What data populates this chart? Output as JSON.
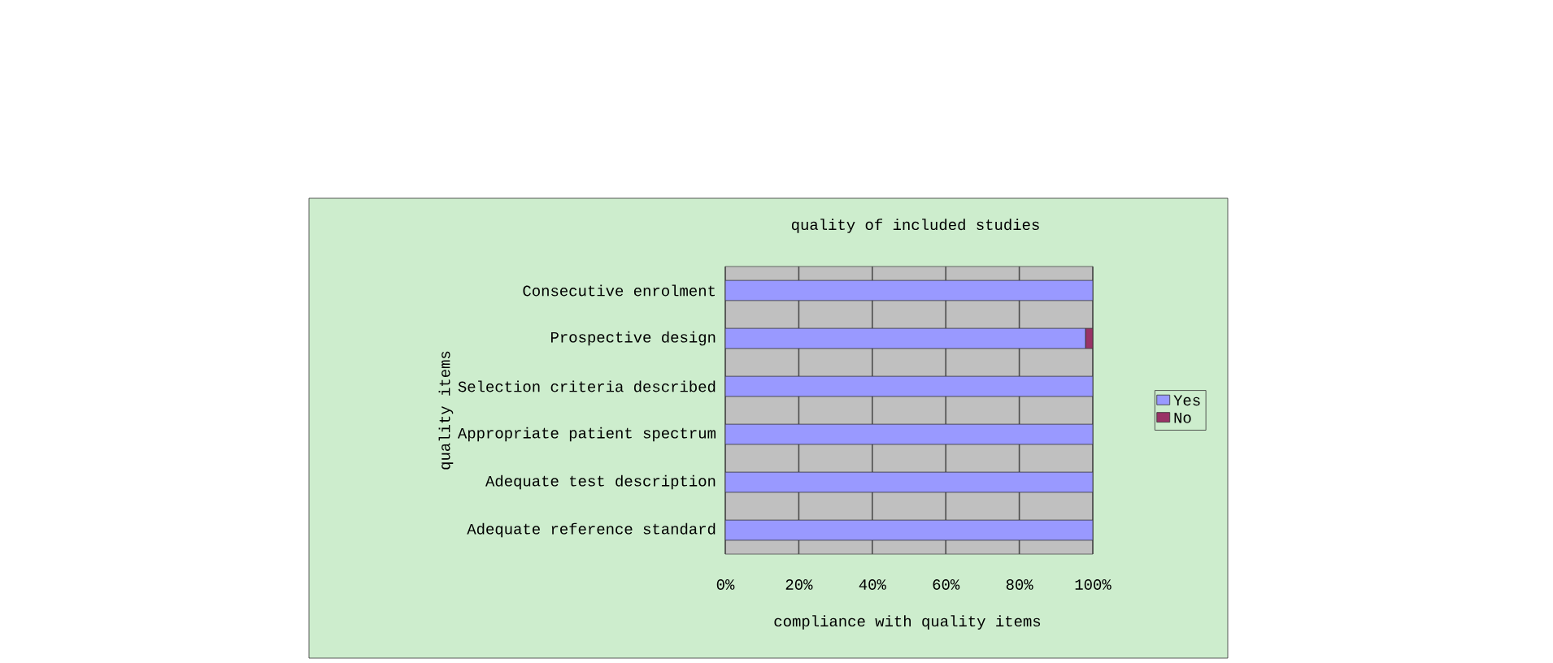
{
  "chart_data": {
    "type": "bar",
    "orientation": "horizontal",
    "stacked": true,
    "title": "quality of included studies",
    "xlabel": "compliance with quality items",
    "ylabel": "quality items",
    "categories": [
      "Consecutive enrolment",
      "Prospective design",
      "Selection criteria described",
      "Appropriate patient spectrum",
      "Adequate test description",
      "Adequate reference standard"
    ],
    "series": [
      {
        "name": "Yes",
        "color": "#9999ff",
        "values": [
          100,
          98,
          100,
          100,
          100,
          100
        ]
      },
      {
        "name": "No",
        "color": "#993366",
        "values": [
          0,
          2,
          0,
          0,
          0,
          0
        ]
      }
    ],
    "xlim": [
      0,
      100
    ],
    "xticks": [
      {
        "value": 0,
        "label": "0%"
      },
      {
        "value": 20,
        "label": "20%"
      },
      {
        "value": 40,
        "label": "40%"
      },
      {
        "value": 60,
        "label": "60%"
      },
      {
        "value": 80,
        "label": "80%"
      },
      {
        "value": 100,
        "label": "100%"
      }
    ],
    "grid": "x",
    "legend": "right"
  }
}
